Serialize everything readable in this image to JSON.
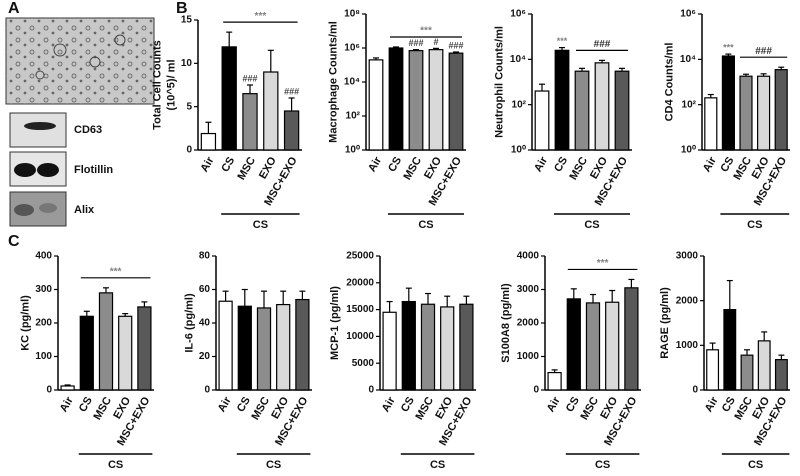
{
  "panel_labels": [
    "A",
    "B",
    "C"
  ],
  "blots": [
    "CD63",
    "Flotillin",
    "Alix"
  ],
  "chart_data": [
    {
      "type": "bar",
      "ylabel": [
        "Total Cell Counts",
        "(10^5)/ ml"
      ],
      "categories": [
        "Air",
        "CS",
        "MSC",
        "EXO",
        "MSC+EXO"
      ],
      "values": [
        1.9,
        11.9,
        6.5,
        9.0,
        4.5
      ],
      "errors": [
        1.3,
        1.7,
        1.0,
        2.5,
        1.5
      ],
      "colors": [
        "#ffffff",
        "#000000",
        "#8c8c8c",
        "#d9d9d9",
        "#595959"
      ],
      "ylim": [
        0,
        15
      ],
      "yticks": [
        0,
        5,
        10,
        15
      ],
      "bar_labels": [
        null,
        null,
        "###",
        null,
        "###"
      ],
      "significance": {
        "label": "***",
        "span": [
          "CS",
          "MSC+EXO"
        ],
        "color": "#808080"
      },
      "group": {
        "label": "CS",
        "span": [
          "CS",
          "MSC+EXO"
        ]
      }
    },
    {
      "type": "bar",
      "log_scale": true,
      "ylabel": [
        "Macrophage Counts/ml"
      ],
      "categories": [
        "Air",
        "CS",
        "MSC",
        "EXO",
        "MSC+EXO"
      ],
      "values": [
        200000,
        1000000,
        700000,
        800000,
        500000
      ],
      "errors": [
        60000,
        150000,
        100000,
        150000,
        80000
      ],
      "colors": [
        "#ffffff",
        "#000000",
        "#8c8c8c",
        "#d9d9d9",
        "#595959"
      ],
      "ylim": [
        1,
        100000000
      ],
      "yticks": [
        {
          "value": 1,
          "label": "10⁰"
        },
        {
          "value": 100,
          "label": "10²"
        },
        {
          "value": 10000,
          "label": "10⁴"
        },
        {
          "value": 1000000,
          "label": "10⁶"
        },
        {
          "value": 100000000,
          "label": "10⁸"
        }
      ],
      "bar_labels": [
        null,
        null,
        "###",
        "#",
        "###"
      ],
      "significance": {
        "label": "***",
        "span": [
          "CS",
          "MSC+EXO"
        ],
        "color": "#808080"
      },
      "group": {
        "label": "CS",
        "span": [
          "CS",
          "MSC+EXO"
        ]
      }
    },
    {
      "type": "bar",
      "log_scale": true,
      "ylabel": [
        "Neutrophil Counts/ml"
      ],
      "categories": [
        "Air",
        "CS",
        "MSC",
        "EXO",
        "MSC+EXO"
      ],
      "values": [
        400,
        25000,
        3000,
        7000,
        3000
      ],
      "errors": [
        400,
        8000,
        1000,
        2000,
        1000
      ],
      "colors": [
        "#ffffff",
        "#000000",
        "#8c8c8c",
        "#d9d9d9",
        "#595959"
      ],
      "ylim": [
        1,
        1000000
      ],
      "yticks": [
        {
          "value": 1,
          "label": "10⁰"
        },
        {
          "value": 100,
          "label": "10²"
        },
        {
          "value": 10000,
          "label": "10⁴"
        },
        {
          "value": 1000000,
          "label": "10⁶"
        }
      ],
      "bar_labels": [
        null,
        "***",
        null,
        null,
        null
      ],
      "significance": {
        "label": "###",
        "span": [
          "MSC",
          "MSC+EXO"
        ],
        "color": "#333333"
      },
      "group": {
        "label": "CS",
        "span": [
          "CS",
          "MSC+EXO"
        ]
      }
    },
    {
      "type": "bar",
      "log_scale": true,
      "ylabel": [
        "CD4 Counts/ml"
      ],
      "categories": [
        "Air",
        "CS",
        "MSC",
        "EXO",
        "MSC+EXO"
      ],
      "values": [
        200,
        14000,
        1800,
        1800,
        3500
      ],
      "errors": [
        80,
        3000,
        400,
        500,
        1000
      ],
      "colors": [
        "#ffffff",
        "#000000",
        "#8c8c8c",
        "#d9d9d9",
        "#595959"
      ],
      "ylim": [
        1,
        1000000
      ],
      "yticks": [
        {
          "value": 1,
          "label": "10⁰"
        },
        {
          "value": 100,
          "label": "10²"
        },
        {
          "value": 10000,
          "label": "10⁴"
        },
        {
          "value": 1000000,
          "label": "10⁶"
        }
      ],
      "bar_labels": [
        null,
        "***",
        null,
        null,
        null
      ],
      "significance": {
        "label": "###",
        "span": [
          "MSC",
          "MSC+EXO"
        ],
        "color": "#333333"
      },
      "group": {
        "label": "CS",
        "span": [
          "CS",
          "MSC+EXO"
        ]
      }
    },
    {
      "type": "bar",
      "ylabel": [
        "KC (pg/ml)"
      ],
      "categories": [
        "Air",
        "CS",
        "MSC",
        "EXO",
        "MSC+EXO"
      ],
      "values": [
        12,
        220,
        290,
        220,
        248
      ],
      "errors": [
        3,
        15,
        15,
        8,
        15
      ],
      "colors": [
        "#ffffff",
        "#000000",
        "#8c8c8c",
        "#d9d9d9",
        "#595959"
      ],
      "ylim": [
        0,
        400
      ],
      "yticks": [
        0,
        100,
        200,
        300,
        400
      ],
      "significance": {
        "label": "***",
        "span": [
          "CS",
          "MSC+EXO"
        ],
        "color": "#808080"
      },
      "group": {
        "label": "CS",
        "span": [
          "CS",
          "MSC+EXO"
        ]
      }
    },
    {
      "type": "bar",
      "ylabel": [
        "IL-6 (pg/ml)"
      ],
      "categories": [
        "Air",
        "CS",
        "MSC",
        "EXO",
        "MSC+EXO"
      ],
      "values": [
        53,
        50,
        49,
        51,
        54
      ],
      "errors": [
        6,
        10,
        10,
        8,
        5
      ],
      "colors": [
        "#ffffff",
        "#000000",
        "#8c8c8c",
        "#d9d9d9",
        "#595959"
      ],
      "ylim": [
        0,
        80
      ],
      "yticks": [
        0,
        20,
        40,
        60,
        80
      ],
      "group": {
        "label": "CS",
        "span": [
          "CS",
          "MSC+EXO"
        ]
      }
    },
    {
      "type": "bar",
      "ylabel": [
        "MCP-1 (pg/ml)"
      ],
      "categories": [
        "Air",
        "CS",
        "MSC",
        "EXO",
        "MSC+EXO"
      ],
      "values": [
        14500,
        16500,
        16000,
        15500,
        16000
      ],
      "errors": [
        2000,
        2500,
        2000,
        2000,
        1500
      ],
      "colors": [
        "#ffffff",
        "#000000",
        "#8c8c8c",
        "#d9d9d9",
        "#595959"
      ],
      "ylim": [
        0,
        25000
      ],
      "yticks": [
        0,
        5000,
        10000,
        15000,
        20000,
        25000
      ],
      "group": {
        "label": "CS",
        "span": [
          "CS",
          "MSC+EXO"
        ]
      }
    },
    {
      "type": "bar",
      "ylabel": [
        "S100A8 (pg/ml)"
      ],
      "categories": [
        "Air",
        "CS",
        "MSC",
        "EXO",
        "MSC+EXO"
      ],
      "values": [
        520,
        2720,
        2600,
        2620,
        3050
      ],
      "errors": [
        80,
        300,
        250,
        350,
        250
      ],
      "colors": [
        "#ffffff",
        "#000000",
        "#8c8c8c",
        "#d9d9d9",
        "#595959"
      ],
      "ylim": [
        0,
        4000
      ],
      "yticks": [
        0,
        1000,
        2000,
        3000,
        4000
      ],
      "significance": {
        "label": "***",
        "span": [
          "CS",
          "MSC+EXO"
        ],
        "color": "#808080"
      },
      "group": {
        "label": "CS",
        "span": [
          "CS",
          "MSC+EXO"
        ]
      }
    },
    {
      "type": "bar",
      "ylabel": [
        "RAGE (pg/ml)"
      ],
      "categories": [
        "Air",
        "CS",
        "MSC",
        "EXO",
        "MSC+EXO"
      ],
      "values": [
        900,
        1800,
        780,
        1100,
        680
      ],
      "errors": [
        150,
        650,
        120,
        200,
        100
      ],
      "colors": [
        "#ffffff",
        "#000000",
        "#8c8c8c",
        "#d9d9d9",
        "#595959"
      ],
      "ylim": [
        0,
        3000
      ],
      "yticks": [
        0,
        1000,
        2000,
        3000
      ],
      "group": {
        "label": "CS",
        "span": [
          "CS",
          "MSC+EXO"
        ]
      }
    }
  ]
}
